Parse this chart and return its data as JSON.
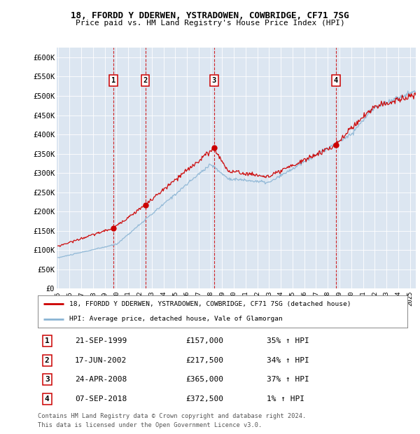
{
  "title1": "18, FFORDD Y DDERWEN, YSTRADOWEN, COWBRIDGE, CF71 7SG",
  "title2": "Price paid vs. HM Land Registry's House Price Index (HPI)",
  "background_color": "#dce6f1",
  "plot_bg_color": "#dce6f1",
  "red_color": "#cc0000",
  "blue_color": "#8ab4d4",
  "sale_dates_year": [
    1999.72,
    2002.46,
    2008.31,
    2018.69
  ],
  "sale_prices": [
    157000,
    217500,
    365000,
    372500
  ],
  "sale_labels": [
    "1",
    "2",
    "3",
    "4"
  ],
  "sale_pct": [
    "35%",
    "34%",
    "37%",
    "1%"
  ],
  "sale_date_str": [
    "21-SEP-1999",
    "17-JUN-2002",
    "24-APR-2008",
    "07-SEP-2018"
  ],
  "sale_price_str": [
    "£157,000",
    "£217,500",
    "£365,000",
    "£372,500"
  ],
  "legend_line1": "18, FFORDD Y DDERWEN, YSTRADOWEN, COWBRIDGE, CF71 7SG (detached house)",
  "legend_line2": "HPI: Average price, detached house, Vale of Glamorgan",
  "footer1": "Contains HM Land Registry data © Crown copyright and database right 2024.",
  "footer2": "This data is licensed under the Open Government Licence v3.0.",
  "ylim": [
    0,
    625000
  ],
  "yticks": [
    0,
    50000,
    100000,
    150000,
    200000,
    250000,
    300000,
    350000,
    400000,
    450000,
    500000,
    550000,
    600000
  ],
  "ytick_labels": [
    "£0",
    "£50K",
    "£100K",
    "£150K",
    "£200K",
    "£250K",
    "£300K",
    "£350K",
    "£400K",
    "£450K",
    "£500K",
    "£550K",
    "£600K"
  ],
  "xlim_start": 1994.9,
  "xlim_end": 2025.5,
  "xticks": [
    1995,
    1996,
    1997,
    1998,
    1999,
    2000,
    2001,
    2002,
    2003,
    2004,
    2005,
    2006,
    2007,
    2008,
    2009,
    2010,
    2011,
    2012,
    2013,
    2014,
    2015,
    2016,
    2017,
    2018,
    2019,
    2020,
    2021,
    2022,
    2023,
    2024,
    2025
  ]
}
